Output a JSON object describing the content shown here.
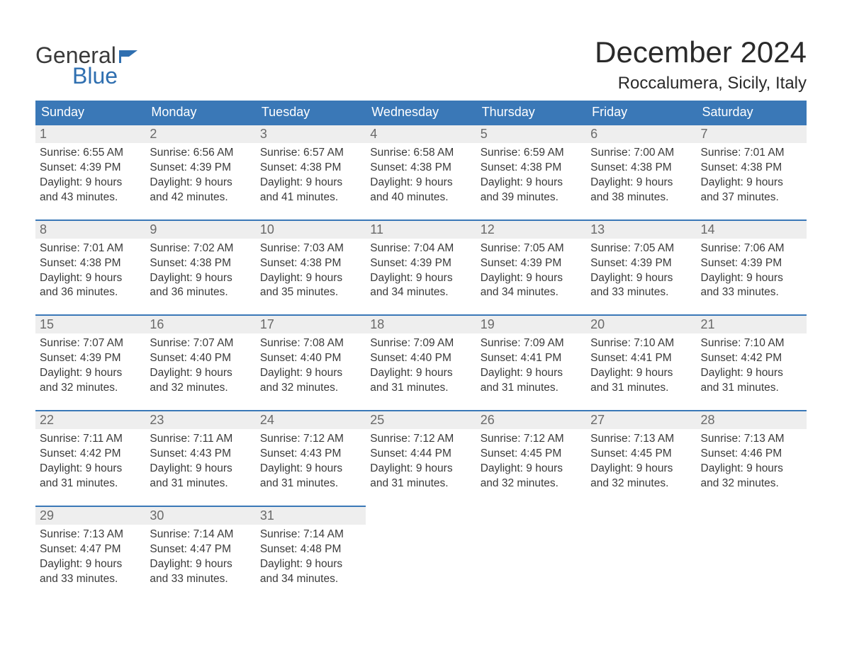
{
  "branding": {
    "logo_top": "General",
    "logo_bottom": "Blue",
    "brand_color": "#2f6fb0",
    "text_color": "#3a3a3a",
    "flag_color": "#2f6fb0"
  },
  "page": {
    "title": "December 2024",
    "location": "Roccalumera, Sicily, Italy",
    "title_fontsize": 42,
    "location_fontsize": 24,
    "background_color": "#ffffff"
  },
  "calendar": {
    "type": "table",
    "header_bg": "#3a78b7",
    "header_text_color": "#ffffff",
    "daynum_bg": "#eeeeee",
    "daynum_border_color": "#3a78b7",
    "body_fontsize": 15.5,
    "days_of_week": [
      "Sunday",
      "Monday",
      "Tuesday",
      "Wednesday",
      "Thursday",
      "Friday",
      "Saturday"
    ],
    "weeks": [
      [
        {
          "num": "1",
          "sunrise": "Sunrise: 6:55 AM",
          "sunset": "Sunset: 4:39 PM",
          "daylight1": "Daylight: 9 hours",
          "daylight2": "and 43 minutes."
        },
        {
          "num": "2",
          "sunrise": "Sunrise: 6:56 AM",
          "sunset": "Sunset: 4:39 PM",
          "daylight1": "Daylight: 9 hours",
          "daylight2": "and 42 minutes."
        },
        {
          "num": "3",
          "sunrise": "Sunrise: 6:57 AM",
          "sunset": "Sunset: 4:38 PM",
          "daylight1": "Daylight: 9 hours",
          "daylight2": "and 41 minutes."
        },
        {
          "num": "4",
          "sunrise": "Sunrise: 6:58 AM",
          "sunset": "Sunset: 4:38 PM",
          "daylight1": "Daylight: 9 hours",
          "daylight2": "and 40 minutes."
        },
        {
          "num": "5",
          "sunrise": "Sunrise: 6:59 AM",
          "sunset": "Sunset: 4:38 PM",
          "daylight1": "Daylight: 9 hours",
          "daylight2": "and 39 minutes."
        },
        {
          "num": "6",
          "sunrise": "Sunrise: 7:00 AM",
          "sunset": "Sunset: 4:38 PM",
          "daylight1": "Daylight: 9 hours",
          "daylight2": "and 38 minutes."
        },
        {
          "num": "7",
          "sunrise": "Sunrise: 7:01 AM",
          "sunset": "Sunset: 4:38 PM",
          "daylight1": "Daylight: 9 hours",
          "daylight2": "and 37 minutes."
        }
      ],
      [
        {
          "num": "8",
          "sunrise": "Sunrise: 7:01 AM",
          "sunset": "Sunset: 4:38 PM",
          "daylight1": "Daylight: 9 hours",
          "daylight2": "and 36 minutes."
        },
        {
          "num": "9",
          "sunrise": "Sunrise: 7:02 AM",
          "sunset": "Sunset: 4:38 PM",
          "daylight1": "Daylight: 9 hours",
          "daylight2": "and 36 minutes."
        },
        {
          "num": "10",
          "sunrise": "Sunrise: 7:03 AM",
          "sunset": "Sunset: 4:38 PM",
          "daylight1": "Daylight: 9 hours",
          "daylight2": "and 35 minutes."
        },
        {
          "num": "11",
          "sunrise": "Sunrise: 7:04 AM",
          "sunset": "Sunset: 4:39 PM",
          "daylight1": "Daylight: 9 hours",
          "daylight2": "and 34 minutes."
        },
        {
          "num": "12",
          "sunrise": "Sunrise: 7:05 AM",
          "sunset": "Sunset: 4:39 PM",
          "daylight1": "Daylight: 9 hours",
          "daylight2": "and 34 minutes."
        },
        {
          "num": "13",
          "sunrise": "Sunrise: 7:05 AM",
          "sunset": "Sunset: 4:39 PM",
          "daylight1": "Daylight: 9 hours",
          "daylight2": "and 33 minutes."
        },
        {
          "num": "14",
          "sunrise": "Sunrise: 7:06 AM",
          "sunset": "Sunset: 4:39 PM",
          "daylight1": "Daylight: 9 hours",
          "daylight2": "and 33 minutes."
        }
      ],
      [
        {
          "num": "15",
          "sunrise": "Sunrise: 7:07 AM",
          "sunset": "Sunset: 4:39 PM",
          "daylight1": "Daylight: 9 hours",
          "daylight2": "and 32 minutes."
        },
        {
          "num": "16",
          "sunrise": "Sunrise: 7:07 AM",
          "sunset": "Sunset: 4:40 PM",
          "daylight1": "Daylight: 9 hours",
          "daylight2": "and 32 minutes."
        },
        {
          "num": "17",
          "sunrise": "Sunrise: 7:08 AM",
          "sunset": "Sunset: 4:40 PM",
          "daylight1": "Daylight: 9 hours",
          "daylight2": "and 32 minutes."
        },
        {
          "num": "18",
          "sunrise": "Sunrise: 7:09 AM",
          "sunset": "Sunset: 4:40 PM",
          "daylight1": "Daylight: 9 hours",
          "daylight2": "and 31 minutes."
        },
        {
          "num": "19",
          "sunrise": "Sunrise: 7:09 AM",
          "sunset": "Sunset: 4:41 PM",
          "daylight1": "Daylight: 9 hours",
          "daylight2": "and 31 minutes."
        },
        {
          "num": "20",
          "sunrise": "Sunrise: 7:10 AM",
          "sunset": "Sunset: 4:41 PM",
          "daylight1": "Daylight: 9 hours",
          "daylight2": "and 31 minutes."
        },
        {
          "num": "21",
          "sunrise": "Sunrise: 7:10 AM",
          "sunset": "Sunset: 4:42 PM",
          "daylight1": "Daylight: 9 hours",
          "daylight2": "and 31 minutes."
        }
      ],
      [
        {
          "num": "22",
          "sunrise": "Sunrise: 7:11 AM",
          "sunset": "Sunset: 4:42 PM",
          "daylight1": "Daylight: 9 hours",
          "daylight2": "and 31 minutes."
        },
        {
          "num": "23",
          "sunrise": "Sunrise: 7:11 AM",
          "sunset": "Sunset: 4:43 PM",
          "daylight1": "Daylight: 9 hours",
          "daylight2": "and 31 minutes."
        },
        {
          "num": "24",
          "sunrise": "Sunrise: 7:12 AM",
          "sunset": "Sunset: 4:43 PM",
          "daylight1": "Daylight: 9 hours",
          "daylight2": "and 31 minutes."
        },
        {
          "num": "25",
          "sunrise": "Sunrise: 7:12 AM",
          "sunset": "Sunset: 4:44 PM",
          "daylight1": "Daylight: 9 hours",
          "daylight2": "and 31 minutes."
        },
        {
          "num": "26",
          "sunrise": "Sunrise: 7:12 AM",
          "sunset": "Sunset: 4:45 PM",
          "daylight1": "Daylight: 9 hours",
          "daylight2": "and 32 minutes."
        },
        {
          "num": "27",
          "sunrise": "Sunrise: 7:13 AM",
          "sunset": "Sunset: 4:45 PM",
          "daylight1": "Daylight: 9 hours",
          "daylight2": "and 32 minutes."
        },
        {
          "num": "28",
          "sunrise": "Sunrise: 7:13 AM",
          "sunset": "Sunset: 4:46 PM",
          "daylight1": "Daylight: 9 hours",
          "daylight2": "and 32 minutes."
        }
      ],
      [
        {
          "num": "29",
          "sunrise": "Sunrise: 7:13 AM",
          "sunset": "Sunset: 4:47 PM",
          "daylight1": "Daylight: 9 hours",
          "daylight2": "and 33 minutes."
        },
        {
          "num": "30",
          "sunrise": "Sunrise: 7:14 AM",
          "sunset": "Sunset: 4:47 PM",
          "daylight1": "Daylight: 9 hours",
          "daylight2": "and 33 minutes."
        },
        {
          "num": "31",
          "sunrise": "Sunrise: 7:14 AM",
          "sunset": "Sunset: 4:48 PM",
          "daylight1": "Daylight: 9 hours",
          "daylight2": "and 34 minutes."
        },
        null,
        null,
        null,
        null
      ]
    ]
  }
}
